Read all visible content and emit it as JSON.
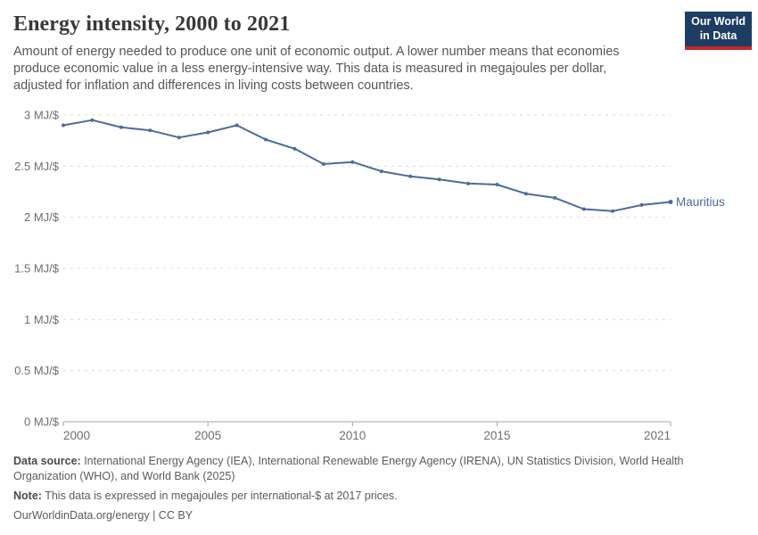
{
  "header": {
    "title": "Energy intensity, 2000 to 2021",
    "subtitle": "Amount of energy needed to produce one unit of economic output. A lower number means that economies produce economic value in a less energy-intensive way. This data is measured in megajoules per dollar, adjusted for inflation and differences in living costs between countries.",
    "logo": {
      "line1": "Our World",
      "line2": "in Data"
    }
  },
  "chart_data": {
    "type": "line",
    "title": "Energy intensity, 2000 to 2021",
    "xlabel": "",
    "ylabel": "MJ/$",
    "xlim": [
      2000,
      2021
    ],
    "ylim": [
      0,
      3
    ],
    "grid": "horizontal-dashed",
    "legend_position": "end-of-line",
    "x": [
      2000,
      2001,
      2002,
      2003,
      2004,
      2005,
      2006,
      2007,
      2008,
      2009,
      2010,
      2011,
      2012,
      2013,
      2014,
      2015,
      2016,
      2017,
      2018,
      2019,
      2020,
      2021
    ],
    "series": [
      {
        "name": "Mauritius",
        "color": "#4c6a9c",
        "values": [
          2.9,
          2.95,
          2.88,
          2.85,
          2.78,
          2.83,
          2.9,
          2.76,
          2.67,
          2.52,
          2.54,
          2.45,
          2.4,
          2.37,
          2.33,
          2.32,
          2.23,
          2.19,
          2.08,
          2.06,
          2.12,
          2.15
        ]
      }
    ],
    "xticks": [
      {
        "value": 2000,
        "label": "2000"
      },
      {
        "value": 2005,
        "label": "2005"
      },
      {
        "value": 2010,
        "label": "2010"
      },
      {
        "value": 2015,
        "label": "2015"
      },
      {
        "value": 2021,
        "label": "2021"
      }
    ],
    "yticks": [
      {
        "value": 0,
        "label": "0 MJ/$"
      },
      {
        "value": 0.5,
        "label": "0.5 MJ/$"
      },
      {
        "value": 1,
        "label": "1 MJ/$"
      },
      {
        "value": 1.5,
        "label": "1.5 MJ/$"
      },
      {
        "value": 2,
        "label": "2 MJ/$"
      },
      {
        "value": 2.5,
        "label": "2.5 MJ/$"
      },
      {
        "value": 3,
        "label": "3 MJ/$"
      }
    ]
  },
  "theme": {
    "line_color": "#4c6a9c",
    "grid_color": "#d9d9d9",
    "axis_color": "#a3a3a3",
    "tick_text_color": "#6e6e6e",
    "logo_bg": "#1d3d63",
    "logo_stripe": "#c0272d"
  },
  "footer": {
    "source_label": "Data source:",
    "source_text": " International Energy Agency (IEA), International Renewable Energy Agency (IRENA), UN Statistics Division, World Health Organization (WHO), and World Bank (2025)",
    "note_label": "Note:",
    "note_text": " This data is expressed in megajoules per international-$ at 2017 prices.",
    "citation": "OurWorldinData.org/energy | CC BY"
  }
}
